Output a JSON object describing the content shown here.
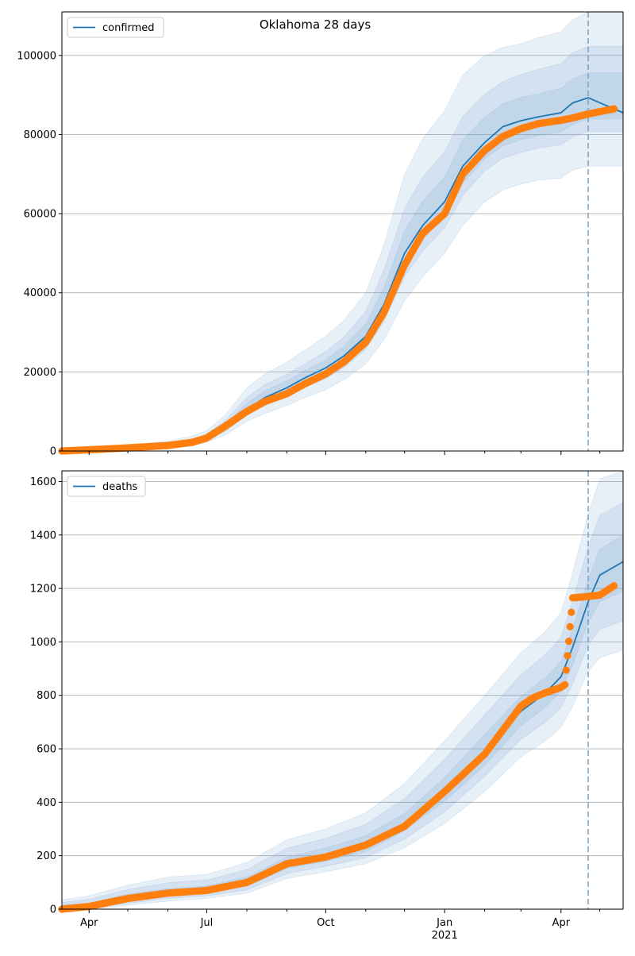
{
  "title": "Oklahoma 28 days",
  "colors": {
    "model_line": "#1f77b4",
    "band": "#6fa0d2",
    "observed": "#ff7f0e",
    "forecast_line": "#7aa6c9",
    "grid": "#b0b0b0"
  },
  "x_axis": {
    "month_ticks": [
      "Apr",
      "Jul",
      "Oct",
      "Jan",
      "Apr"
    ],
    "year_label": "2021"
  },
  "chart_data": [
    {
      "type": "line",
      "legend": "confirmed",
      "legend_position": "top-left",
      "grid": true,
      "xlim": [
        "2020-03-11",
        "2021-05-19"
      ],
      "ylim": [
        0,
        111000
      ],
      "yticks": [
        0,
        20000,
        40000,
        60000,
        80000,
        100000
      ],
      "forecast_date": "2021-04-22",
      "model": {
        "x": [
          "2020-03-11",
          "2020-04-01",
          "2020-05-01",
          "2020-06-01",
          "2020-06-20",
          "2020-07-01",
          "2020-07-15",
          "2020-08-01",
          "2020-08-15",
          "2020-09-01",
          "2020-09-15",
          "2020-10-01",
          "2020-10-15",
          "2020-11-01",
          "2020-11-15",
          "2020-12-01",
          "2020-12-15",
          "2021-01-01",
          "2021-01-15",
          "2021-02-01",
          "2021-02-15",
          "2021-03-01",
          "2021-03-15",
          "2021-04-01",
          "2021-04-10",
          "2021-04-22",
          "2021-05-19"
        ],
        "y": [
          0,
          300,
          800,
          1500,
          2300,
          3200,
          5800,
          10500,
          13500,
          16000,
          18500,
          21000,
          24000,
          29000,
          37000,
          50000,
          57000,
          63000,
          72000,
          78000,
          82000,
          83500,
          84500,
          85500,
          88000,
          89300,
          85500
        ],
        "band_outer_upper": [
          0,
          800,
          1500,
          2500,
          3800,
          5200,
          9000,
          16000,
          19500,
          22500,
          25500,
          29000,
          33000,
          40000,
          52000,
          70000,
          79000,
          86000,
          95000,
          100000,
          102000,
          103000,
          104500,
          106000,
          109000,
          111000,
          111000
        ],
        "band_outer_lower": [
          0,
          0,
          300,
          900,
          1400,
          2200,
          4000,
          7500,
          9500,
          11500,
          13500,
          15500,
          18000,
          22000,
          28000,
          38000,
          44000,
          50000,
          57000,
          63000,
          66000,
          67500,
          68500,
          69000,
          71000,
          72000,
          72000
        ],
        "band_mid_upper": [
          0,
          550,
          1150,
          2000,
          3000,
          4300,
          7600,
          13500,
          16800,
          19400,
          22100,
          25100,
          28800,
          35200,
          45700,
          61300,
          69200,
          75600,
          84600,
          90200,
          93400,
          95200,
          96500,
          97900,
          100700,
          102300,
          102300
        ],
        "band_mid_lower": [
          0,
          100,
          480,
          1200,
          1850,
          2700,
          4900,
          9000,
          11600,
          13800,
          16100,
          18300,
          21100,
          25700,
          32800,
          44100,
          50600,
          56400,
          64600,
          70800,
          74000,
          75500,
          76600,
          77400,
          79400,
          80700,
          80700
        ],
        "band_inner_upper": [
          0,
          420,
          980,
          1750,
          2650,
          3750,
          6700,
          12000,
          15200,
          17700,
          20300,
          23000,
          26400,
          32100,
          41200,
          55700,
          63100,
          69300,
          78700,
          84400,
          87800,
          89400,
          90300,
          91700,
          94100,
          95600,
          95600
        ],
        "band_inner_lower": [
          0,
          180,
          640,
          1350,
          2000,
          2950,
          5300,
          9800,
          12500,
          14800,
          17300,
          19700,
          22600,
          27400,
          34700,
          46800,
          53600,
          59400,
          67700,
          73900,
          77100,
          78700,
          79800,
          80600,
          82600,
          83900,
          83900
        ]
      },
      "observed": {
        "x": [
          "2020-03-11",
          "2020-04-01",
          "2020-05-01",
          "2020-06-01",
          "2020-06-20",
          "2020-07-01",
          "2020-07-15",
          "2020-08-01",
          "2020-08-15",
          "2020-09-01",
          "2020-09-15",
          "2020-10-01",
          "2020-10-15",
          "2020-11-01",
          "2020-11-15",
          "2020-12-01",
          "2020-12-15",
          "2021-01-01",
          "2021-01-15",
          "2021-02-01",
          "2021-02-15",
          "2021-03-01",
          "2021-03-15",
          "2021-04-01",
          "2021-04-10",
          "2021-04-22",
          "2021-05-12"
        ],
        "y": [
          0,
          300,
          800,
          1400,
          2200,
          3300,
          6200,
          10000,
          12500,
          14500,
          17000,
          19500,
          22500,
          27500,
          35000,
          47000,
          55000,
          60000,
          70000,
          76000,
          79500,
          81500,
          82800,
          83600,
          84200,
          85200,
          86500
        ]
      }
    },
    {
      "type": "line",
      "legend": "deaths",
      "legend_position": "top-left",
      "grid": true,
      "xlim": [
        "2020-03-11",
        "2021-05-19"
      ],
      "ylim": [
        0,
        1640
      ],
      "yticks": [
        0,
        200,
        400,
        600,
        800,
        1000,
        1200,
        1400,
        1600
      ],
      "forecast_date": "2021-04-22",
      "model": {
        "x": [
          "2020-03-11",
          "2020-04-01",
          "2020-05-01",
          "2020-06-01",
          "2020-07-01",
          "2020-08-01",
          "2020-09-01",
          "2020-10-01",
          "2020-11-01",
          "2020-12-01",
          "2021-01-01",
          "2021-02-01",
          "2021-03-01",
          "2021-03-20",
          "2021-04-01",
          "2021-04-10",
          "2021-04-22",
          "2021-05-01",
          "2021-05-19"
        ],
        "y": [
          0,
          10,
          40,
          60,
          70,
          100,
          170,
          200,
          240,
          320,
          440,
          590,
          740,
          810,
          870,
          980,
          1150,
          1250,
          1300
        ],
        "band_outer_upper": [
          35,
          50,
          90,
          120,
          130,
          175,
          260,
          300,
          360,
          470,
          630,
          800,
          960,
          1040,
          1110,
          1260,
          1480,
          1610,
          1640
        ],
        "band_outer_lower": [
          0,
          0,
          15,
          30,
          40,
          60,
          115,
          140,
          170,
          230,
          320,
          440,
          570,
          630,
          680,
          760,
          890,
          940,
          970
        ],
        "band_mid_upper": [
          25,
          37,
          73,
          99,
          109,
          148,
          228,
          265,
          317,
          414,
          561,
          727,
          877,
          953,
          1017,
          1154,
          1356,
          1474,
          1520
        ],
        "band_mid_lower": [
          0,
          3,
          22,
          40,
          50,
          72,
          133,
          160,
          193,
          262,
          364,
          497,
          636,
          700,
          755,
          843,
          987,
          1047,
          1080
        ],
        "band_inner_upper": [
          15,
          23,
          56,
          77,
          87,
          120,
          194,
          229,
          274,
          358,
          492,
          654,
          796,
          867,
          926,
          1050,
          1235,
          1347,
          1400
        ],
        "band_inner_lower": [
          0,
          6,
          30,
          50,
          60,
          86,
          152,
          180,
          215,
          294,
          404,
          538,
          686,
          756,
          816,
          914,
          1073,
          1150,
          1190
        ]
      },
      "observed": {
        "x": [
          "2020-03-11",
          "2020-04-01",
          "2020-05-01",
          "2020-06-01",
          "2020-07-01",
          "2020-08-01",
          "2020-09-01",
          "2020-10-01",
          "2020-11-01",
          "2020-12-01",
          "2021-01-01",
          "2021-02-01",
          "2021-03-01",
          "2021-03-10",
          "2021-03-20",
          "2021-04-01",
          "2021-04-04",
          "2021-04-10",
          "2021-04-22",
          "2021-05-01",
          "2021-05-12"
        ],
        "y": [
          0,
          10,
          40,
          60,
          70,
          100,
          170,
          195,
          240,
          310,
          440,
          580,
          760,
          790,
          810,
          830,
          840,
          1165,
          1170,
          1175,
          1210
        ]
      }
    }
  ]
}
